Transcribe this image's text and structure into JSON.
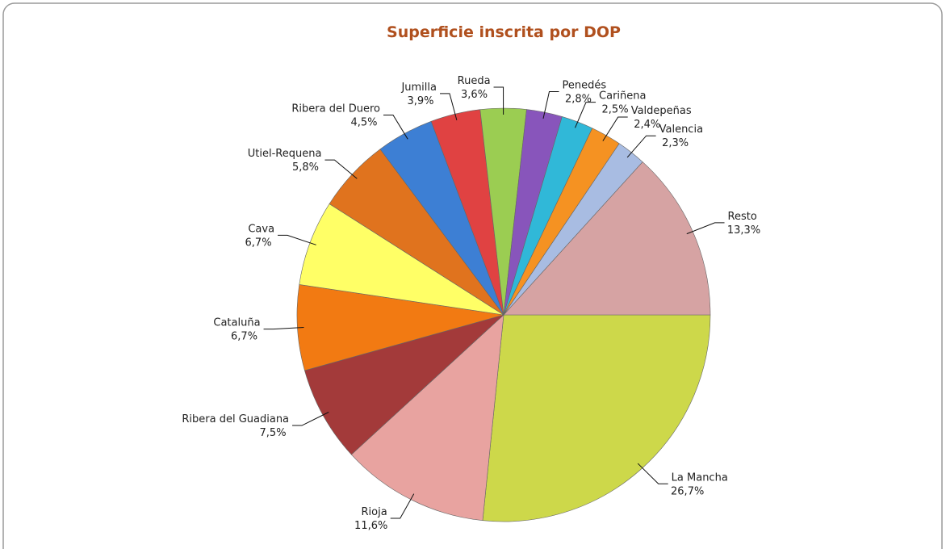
{
  "chart_data": {
    "type": "pie",
    "title": "Superficie inscrita por DOP",
    "categories": [
      "La Mancha",
      "Rioja",
      "Ribera del Guadiana",
      "Cataluña",
      "Cava",
      "Utiel-Requena",
      "Ribera del Duero",
      "Jumilla",
      "Rueda",
      "Penedés",
      "Cariñena",
      "Valdepeñas",
      "Valencia",
      "Resto"
    ],
    "values": [
      26.7,
      11.6,
      7.5,
      6.7,
      6.7,
      5.8,
      4.5,
      3.9,
      3.6,
      2.8,
      2.5,
      2.4,
      2.3,
      13.3
    ],
    "value_labels": [
      "26,7%",
      "11,6%",
      "7,5%",
      "6,7%",
      "6,7%",
      "5,8%",
      "4,5%",
      "3,9%",
      "3,6%",
      "2,8%",
      "2,5%",
      "2,4%",
      "2,3%",
      "13,3%"
    ],
    "colors": [
      "#cdd84a",
      "#e8a3a0",
      "#a33a3a",
      "#f27a12",
      "#ffff66",
      "#e0731e",
      "#3d7fd4",
      "#e04242",
      "#9bcd52",
      "#8855bb",
      "#30b8d8",
      "#f59222",
      "#a8bce2",
      "#d6a3a3"
    ]
  }
}
